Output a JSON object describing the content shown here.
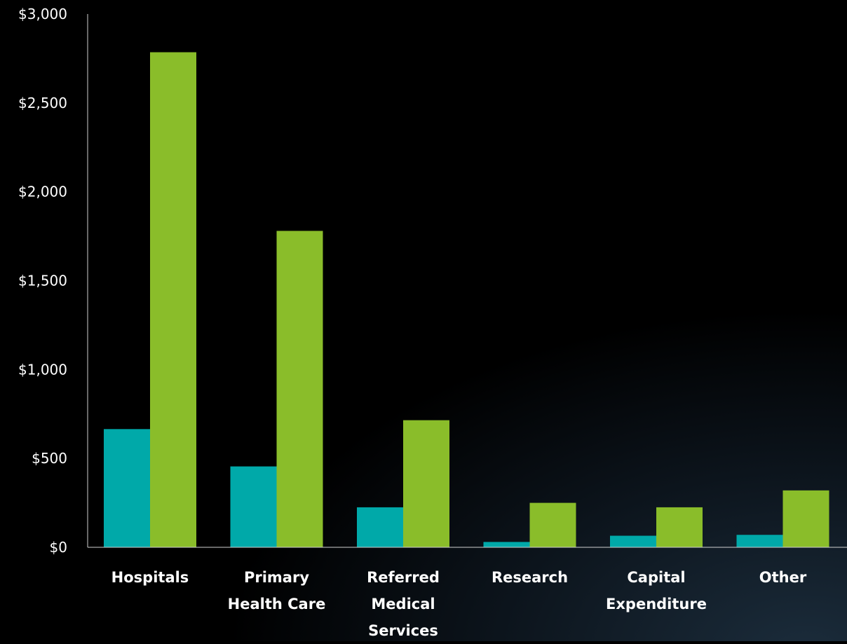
{
  "chart_data": {
    "type": "bar",
    "title": "",
    "xlabel": "",
    "ylabel": "",
    "ylim": [
      0,
      3000
    ],
    "y_ticks": [
      "$0",
      "$500",
      "$1,000",
      "$1,500",
      "$2,000",
      "$2,500",
      "$3,000"
    ],
    "y_tick_values": [
      0,
      500,
      1000,
      1500,
      2000,
      2500,
      3000
    ],
    "grid": false,
    "legend": "none",
    "categories": [
      [
        "Hospitals"
      ],
      [
        "Primary",
        "Health Care"
      ],
      [
        "Referred",
        "Medical",
        "Services"
      ],
      [
        "Research"
      ],
      [
        "Capital",
        "Expenditure"
      ],
      [
        "Other"
      ]
    ],
    "series": [
      {
        "color": "#00a9a9",
        "values": [
          665,
          455,
          225,
          30,
          65,
          70
        ]
      },
      {
        "color": "#8abd2a",
        "values": [
          2785,
          1780,
          715,
          250,
          225,
          320
        ]
      }
    ]
  }
}
